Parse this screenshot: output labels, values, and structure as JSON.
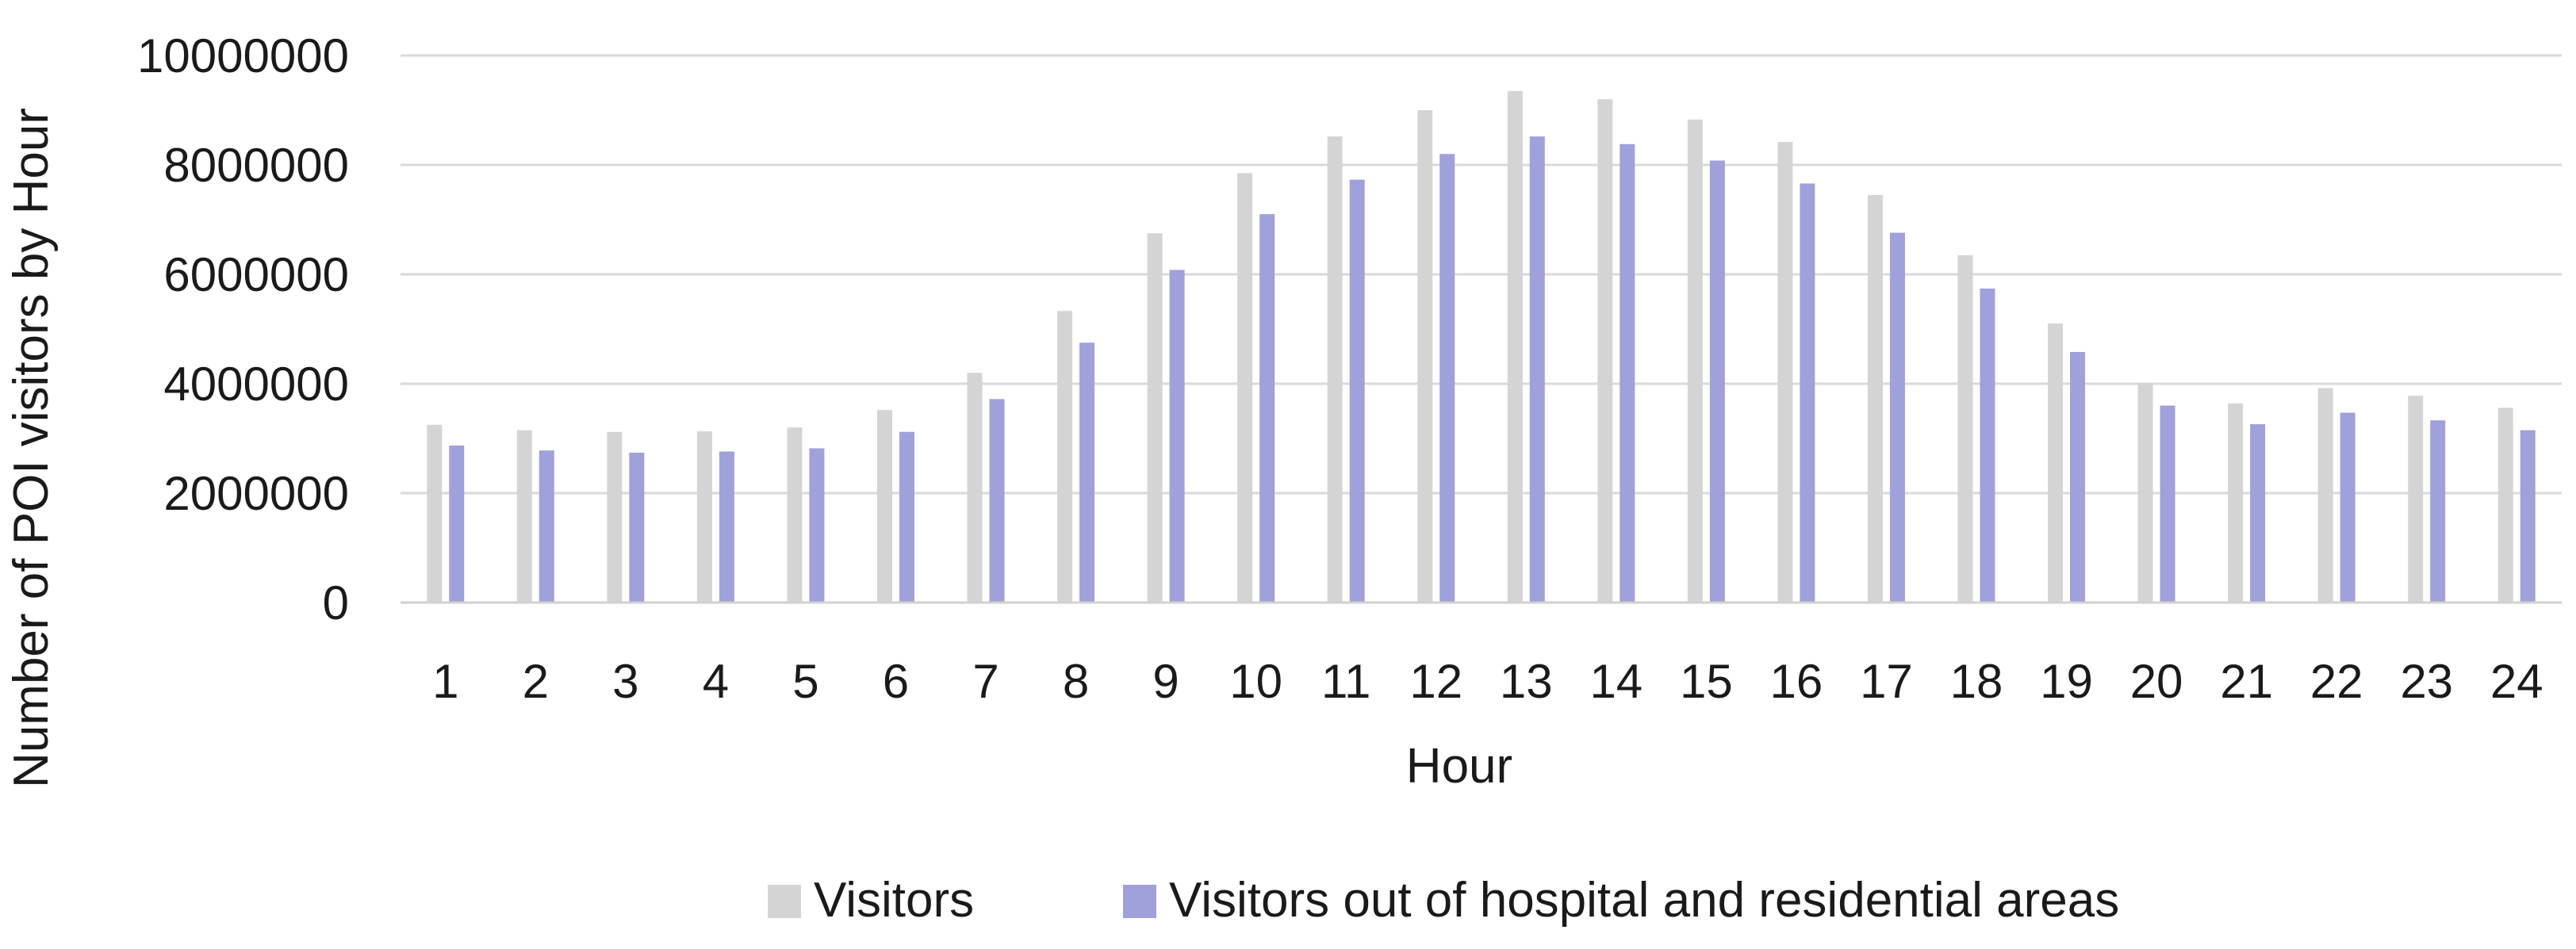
{
  "chart_data": {
    "type": "bar",
    "title": "",
    "xlabel": "Hour",
    "ylabel": "Number of POI visitors by Hour",
    "ylim": [
      0,
      10000000
    ],
    "yticks": [
      0,
      2000000,
      4000000,
      6000000,
      8000000,
      10000000
    ],
    "ytick_labels": [
      "0",
      "2000000",
      "4000000",
      "6000000",
      "8000000",
      "10000000"
    ],
    "grid": "horizontal",
    "legend_position": "bottom",
    "categories": [
      "1",
      "2",
      "3",
      "4",
      "5",
      "6",
      "7",
      "8",
      "9",
      "10",
      "11",
      "12",
      "13",
      "14",
      "15",
      "16",
      "17",
      "18",
      "19",
      "20",
      "21",
      "22",
      "23",
      "24"
    ],
    "series": [
      {
        "name": "Visitors",
        "color": "#d4d4d4",
        "values": [
          3250000,
          3150000,
          3120000,
          3130000,
          3200000,
          3520000,
          4200000,
          5330000,
          6750000,
          7850000,
          8520000,
          9000000,
          9350000,
          9200000,
          8830000,
          8420000,
          7450000,
          6350000,
          5100000,
          4000000,
          3640000,
          3920000,
          3780000,
          3560000
        ]
      },
      {
        "name": "Visitors out of hospital and residential areas",
        "color": "#a0a0da",
        "values": [
          2870000,
          2780000,
          2740000,
          2760000,
          2820000,
          3120000,
          3720000,
          4750000,
          6080000,
          7100000,
          7730000,
          8200000,
          8520000,
          8380000,
          8080000,
          7660000,
          6760000,
          5740000,
          4580000,
          3600000,
          3260000,
          3470000,
          3330000,
          3150000
        ]
      }
    ]
  }
}
